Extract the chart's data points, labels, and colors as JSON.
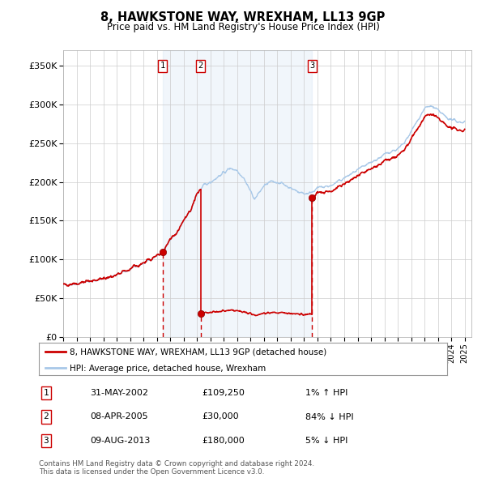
{
  "title": "8, HAWKSTONE WAY, WREXHAM, LL13 9GP",
  "subtitle": "Price paid vs. HM Land Registry's House Price Index (HPI)",
  "xlim_start": 1995.0,
  "xlim_end": 2025.5,
  "ylim": [
    0,
    370000
  ],
  "yticks": [
    0,
    50000,
    100000,
    150000,
    200000,
    250000,
    300000,
    350000
  ],
  "ytick_labels": [
    "£0",
    "£50K",
    "£100K",
    "£150K",
    "£200K",
    "£250K",
    "£300K",
    "£350K"
  ],
  "transactions": [
    {
      "label": "1",
      "date_float": 2002.42,
      "price": 109250,
      "direction": "↑",
      "pct": "1%",
      "date_str": "31-MAY-2002",
      "price_str": "£109,250"
    },
    {
      "label": "2",
      "date_float": 2005.27,
      "price": 30000,
      "direction": "↓",
      "pct": "84%",
      "date_str": "08-APR-2005",
      "price_str": "£30,000"
    },
    {
      "label": "3",
      "date_float": 2013.6,
      "price": 180000,
      "direction": "↓",
      "pct": "5%",
      "date_str": "09-AUG-2013",
      "price_str": "£180,000"
    }
  ],
  "hpi_line_color": "#a8c8e8",
  "price_line_color": "#cc0000",
  "dot_color": "#cc0000",
  "shade_color": "#c8ddf0",
  "dashed_color": "#cc0000",
  "background_color": "#ffffff",
  "grid_color": "#cccccc",
  "legend_label_price": "8, HAWKSTONE WAY, WREXHAM, LL13 9GP (detached house)",
  "legend_label_hpi": "HPI: Average price, detached house, Wrexham",
  "footnote": "Contains HM Land Registry data © Crown copyright and database right 2024.\nThis data is licensed under the Open Government Licence v3.0."
}
